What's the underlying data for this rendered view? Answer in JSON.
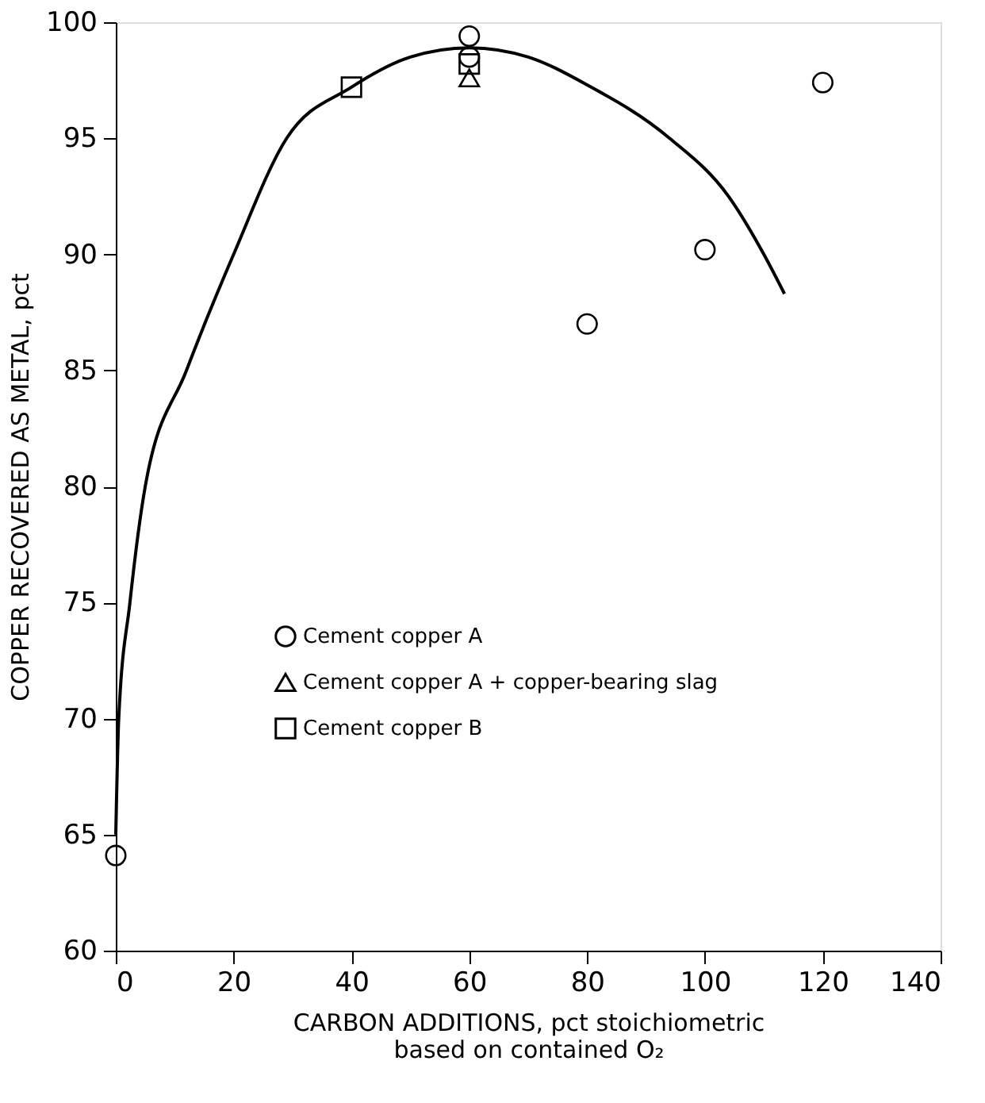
{
  "chart_data": {
    "type": "scatter",
    "xlabel": "CARBON ADDITIONS, pct stoichiometric\nbased on contained O₂",
    "ylabel": "COPPER RECOVERED AS METAL, pct",
    "xlim": [
      0,
      140
    ],
    "ylim": [
      60,
      100
    ],
    "xticks": [
      0,
      20,
      40,
      60,
      80,
      100,
      120,
      140
    ],
    "yticks": [
      60,
      65,
      70,
      75,
      80,
      85,
      90,
      95,
      100
    ],
    "grid": false,
    "legend": "left",
    "series": [
      {
        "name": "Cement copper A",
        "color": "#000000",
        "marker": "circle",
        "x": [
          0,
          60,
          60,
          80,
          100,
          120
        ],
        "values": [
          64.1,
          99.4,
          98.5,
          87,
          90.2,
          97.4
        ]
      },
      {
        "name": "Cement copper A + copper-bearing slag",
        "color": "#000000",
        "marker": "triangle",
        "x": [
          60
        ],
        "values": [
          97.6
        ]
      },
      {
        "name": "Cement copper B",
        "color": "#000000",
        "marker": "square",
        "x": [
          40,
          60
        ],
        "values": [
          97.2,
          98.2
        ]
      },
      {
        "type": "line",
        "color": "#000000",
        "marker": "none",
        "line_style": "solid",
        "x": [
          0,
          0.5,
          2.4,
          5,
          12,
          20,
          29,
          40,
          50,
          60,
          70,
          80,
          94,
          104,
          110,
          113.5
        ],
        "values": [
          65,
          70,
          75,
          80,
          85,
          90,
          95,
          97.2,
          98.5,
          98.9,
          98.5,
          97.3,
          95,
          92.5,
          90,
          88.3
        ]
      }
    ]
  }
}
